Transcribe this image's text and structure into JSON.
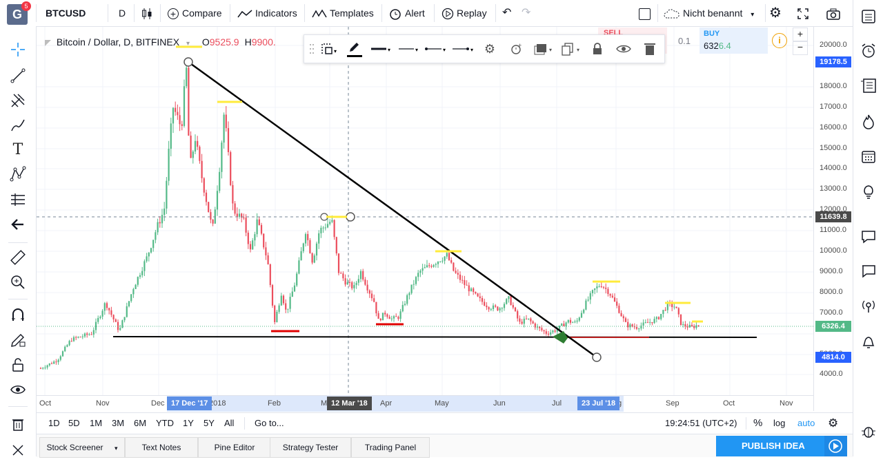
{
  "app": {
    "logo_letter": "G",
    "notif_count": "5",
    "accent": "#2196f3"
  },
  "topbar": {
    "symbol": "BTCUSD",
    "interval": "D",
    "compare_label": "Compare",
    "indicators_label": "Indicators",
    "templates_label": "Templates",
    "alert_label": "Alert",
    "replay_label": "Replay",
    "layout_name": "Nicht benannt"
  },
  "legend": {
    "title": "Bitcoin / Dollar, D, BITFINEX",
    "o_label": "O",
    "o_value": "9525.9",
    "h_label": "H",
    "h_value": "9900."
  },
  "order_panel": {
    "sell_label": "SELL",
    "spread": "0.1",
    "buy_label": "BUY",
    "buy_price_main": "632",
    "buy_price_accent": "6.4"
  },
  "price_axis": {
    "ticks": [
      "20000.0",
      "18000.0",
      "17000.0",
      "16000.0",
      "15000.0",
      "14000.0",
      "13000.0",
      "12000.0",
      "11000.0",
      "10000.0",
      "9000.0",
      "8000.0",
      "7000.0",
      "5000.0",
      "4000.0"
    ],
    "badge_top": "19178.5",
    "badge_cross": "11639.8",
    "badge_last": "6326.4",
    "badge_bottom": "4814.0"
  },
  "time_axis": {
    "labels": [
      "Oct",
      "Nov",
      "Dec",
      "2018",
      "Feb",
      "M",
      "Apr",
      "May",
      "Jun",
      "Jul",
      "g",
      "Sep",
      "Oct",
      "Nov"
    ],
    "badge_left": "17 Dec '17",
    "badge_cross": "12 Mar '18",
    "badge_right": "23 Jul '18"
  },
  "range_bar": {
    "ranges": [
      "1D",
      "5D",
      "1M",
      "3M",
      "6M",
      "YTD",
      "1Y",
      "5Y",
      "All"
    ],
    "goto_label": "Go to...",
    "clock": "19:24:51 (UTC+2)",
    "percent_label": "%",
    "log_label": "log",
    "auto_label": "auto"
  },
  "bottom_tabs": {
    "tabs": [
      "Stock Screener",
      "Text Notes",
      "Pine Editor",
      "Strategy Tester",
      "Trading Panel"
    ],
    "publish_label": "PUBLISH IDEA"
  },
  "colors": {
    "up": "#53b987",
    "down": "#eb4d5c",
    "badge_blue": "#2962ff",
    "badge_dark": "#4a4a4a",
    "last_price": "#53b987",
    "marker_yellow": "#ffeb3b",
    "marker_red": "#e00000"
  }
}
